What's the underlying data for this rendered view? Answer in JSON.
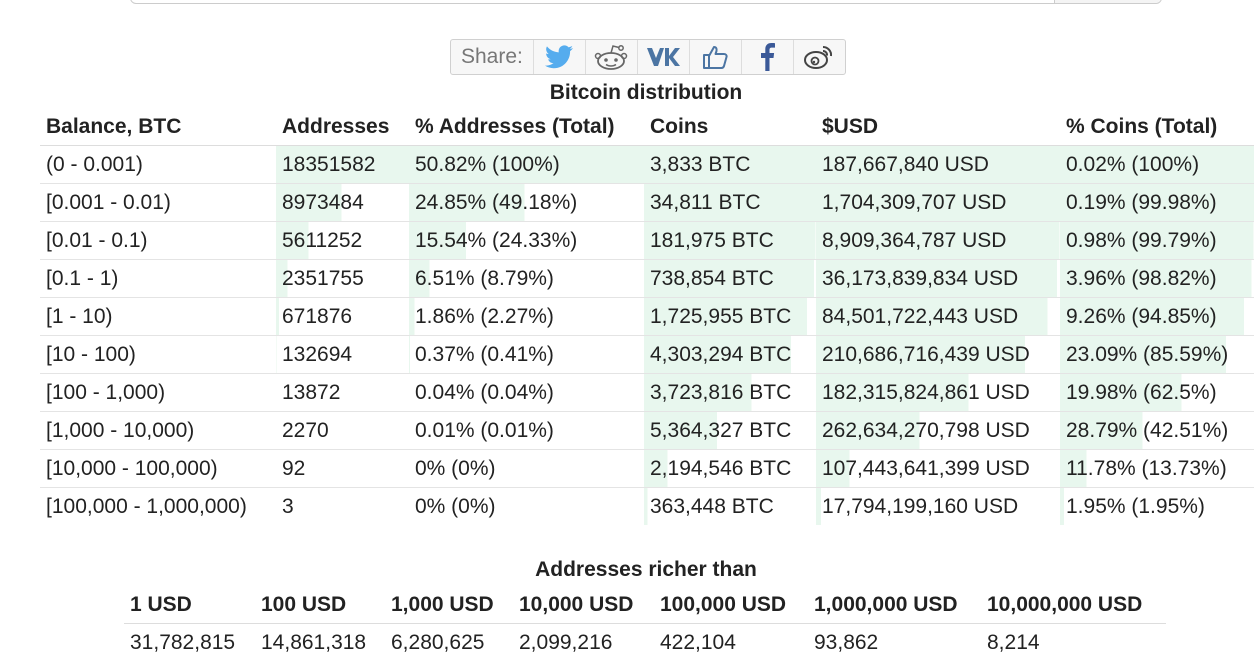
{
  "share": {
    "label": "Share:",
    "buttons": [
      {
        "icon": "twitter-icon",
        "color": "#55acee"
      },
      {
        "icon": "reddit-icon",
        "color": "#666666"
      },
      {
        "icon": "vk-icon",
        "color": "#4c75a3"
      },
      {
        "icon": "like-icon",
        "color": "#4c75a3"
      },
      {
        "icon": "facebook-icon",
        "color": "#3b5998"
      },
      {
        "icon": "weibo-icon",
        "color": "#444444"
      }
    ]
  },
  "distribution": {
    "title": "Bitcoin distribution",
    "headers": [
      "Balance, BTC",
      "Addresses",
      "% Addresses (Total)",
      "Coins",
      "$USD",
      "% Coins (Total)"
    ],
    "bar_color": "#e8f7ee",
    "rows": [
      {
        "balance": "(0 - 0.001)",
        "addresses": "18351582",
        "pct_addr": "50.82% (100%)",
        "coins": "3,833 BTC",
        "usd": "187,667,840 USD",
        "pct_coins": "0.02% (100%)",
        "addr_total_frac": 1.0,
        "coins_total_frac": 1.0
      },
      {
        "balance": "[0.001 - 0.01)",
        "addresses": "8973484",
        "pct_addr": "24.85% (49.18%)",
        "coins": "34,811 BTC",
        "usd": "1,704,309,707 USD",
        "pct_coins": "0.19% (99.98%)",
        "addr_total_frac": 0.4918,
        "coins_total_frac": 0.9998
      },
      {
        "balance": "[0.01 - 0.1)",
        "addresses": "5611252",
        "pct_addr": "15.54% (24.33%)",
        "coins": "181,975 BTC",
        "usd": "8,909,364,787 USD",
        "pct_coins": "0.98% (99.79%)",
        "addr_total_frac": 0.2433,
        "coins_total_frac": 0.9979
      },
      {
        "balance": "[0.1 - 1)",
        "addresses": "2351755",
        "pct_addr": "6.51% (8.79%)",
        "coins": "738,854 BTC",
        "usd": "36,173,839,834 USD",
        "pct_coins": "3.96% (98.82%)",
        "addr_total_frac": 0.0879,
        "coins_total_frac": 0.9882
      },
      {
        "balance": "[1 - 10)",
        "addresses": "671876",
        "pct_addr": "1.86% (2.27%)",
        "coins": "1,725,955 BTC",
        "usd": "84,501,722,443 USD",
        "pct_coins": "9.26% (94.85%)",
        "addr_total_frac": 0.0227,
        "coins_total_frac": 0.9485
      },
      {
        "balance": "[10 - 100)",
        "addresses": "132694",
        "pct_addr": "0.37% (0.41%)",
        "coins": "4,303,294 BTC",
        "usd": "210,686,716,439 USD",
        "pct_coins": "23.09% (85.59%)",
        "addr_total_frac": 0.0041,
        "coins_total_frac": 0.8559
      },
      {
        "balance": "[100 - 1,000)",
        "addresses": "13872",
        "pct_addr": "0.04% (0.04%)",
        "coins": "3,723,816 BTC",
        "usd": "182,315,824,861 USD",
        "pct_coins": "19.98% (62.5%)",
        "addr_total_frac": 0.0004,
        "coins_total_frac": 0.625
      },
      {
        "balance": "[1,000 - 10,000)",
        "addresses": "2270",
        "pct_addr": "0.01% (0.01%)",
        "coins": "5,364,327 BTC",
        "usd": "262,634,270,798 USD",
        "pct_coins": "28.79% (42.51%)",
        "addr_total_frac": 0.0001,
        "coins_total_frac": 0.4251
      },
      {
        "balance": "[10,000 - 100,000)",
        "addresses": "92",
        "pct_addr": "0% (0%)",
        "coins": "2,194,546 BTC",
        "usd": "107,443,641,399 USD",
        "pct_coins": "11.78% (13.73%)",
        "addr_total_frac": 0.0,
        "coins_total_frac": 0.1373
      },
      {
        "balance": "[100,000 - 1,000,000)",
        "addresses": "3",
        "pct_addr": "0% (0%)",
        "coins": "363,448 BTC",
        "usd": "17,794,199,160 USD",
        "pct_coins": "1.95% (1.95%)",
        "addr_total_frac": 0.0,
        "coins_total_frac": 0.0195
      }
    ]
  },
  "richer": {
    "title": "Addresses richer than",
    "headers": [
      "1 USD",
      "100 USD",
      "1,000 USD",
      "10,000 USD",
      "100,000 USD",
      "1,000,000 USD",
      "10,000,000 USD"
    ],
    "values": [
      "31,782,815",
      "14,861,318",
      "6,280,625",
      "2,099,216",
      "422,104",
      "93,862",
      "8,214"
    ]
  }
}
